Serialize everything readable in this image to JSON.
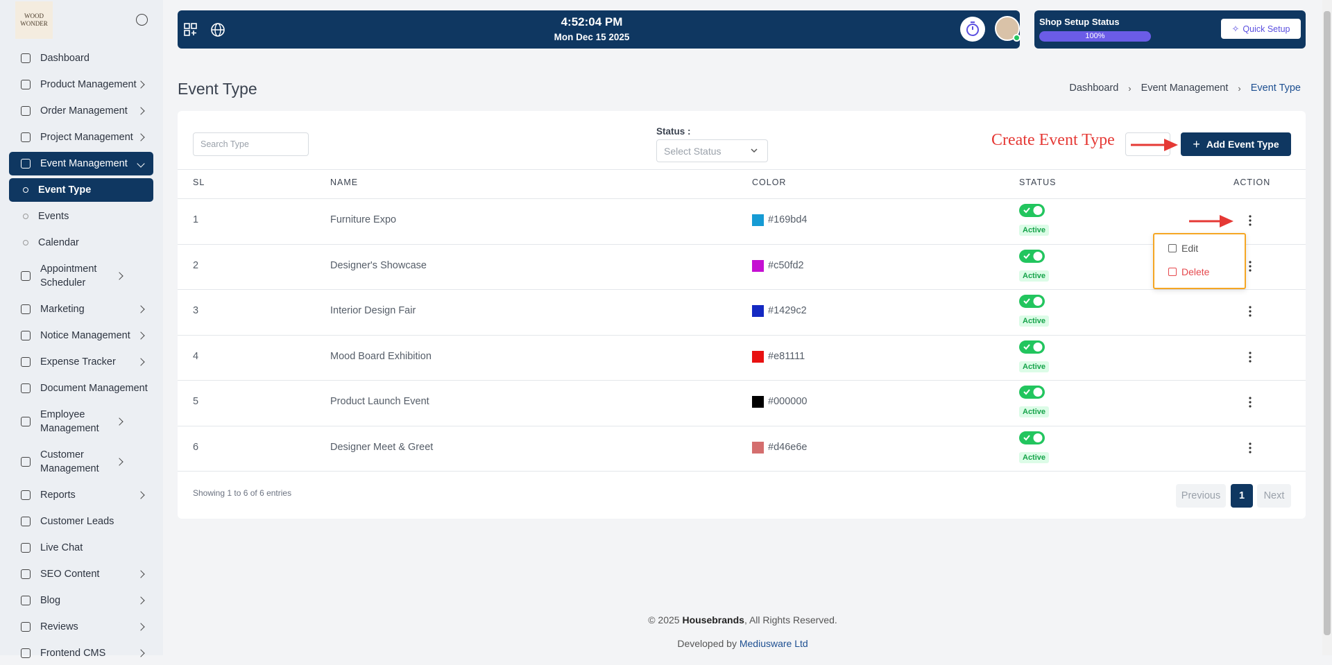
{
  "sidebar": {
    "logo": "WOOD WONDER",
    "menu": [
      {
        "label": "Dashboard",
        "submenu": false
      },
      {
        "label": "Product Management",
        "submenu": true
      },
      {
        "label": "Order Management",
        "submenu": true
      },
      {
        "label": "Project Management",
        "submenu": true
      },
      {
        "label": "Event Management",
        "submenu": true,
        "active": true,
        "children": [
          {
            "label": "Event Type",
            "active": true
          },
          {
            "label": "Events"
          },
          {
            "label": "Calendar"
          }
        ]
      },
      {
        "label": "Appointment Scheduler",
        "submenu": true
      },
      {
        "label": "Marketing",
        "submenu": true
      },
      {
        "label": "Notice Management",
        "submenu": true
      },
      {
        "label": "Expense Tracker",
        "submenu": true
      },
      {
        "label": "Document Management",
        "submenu": false
      },
      {
        "label": "Employee Management",
        "submenu": true
      },
      {
        "label": "Customer Management",
        "submenu": true
      },
      {
        "label": "Reports",
        "submenu": true
      },
      {
        "label": "Customer Leads",
        "submenu": false
      },
      {
        "label": "Live Chat",
        "submenu": false
      },
      {
        "label": "SEO Content",
        "submenu": true
      },
      {
        "label": "Blog",
        "submenu": true
      },
      {
        "label": "Reviews",
        "submenu": true
      },
      {
        "label": "Frontend CMS",
        "submenu": true
      }
    ]
  },
  "topbar": {
    "time": "4:52:04 PM",
    "date": "Mon Dec 15 2025",
    "shop_setup": {
      "title": "Shop Setup Status",
      "progress": {
        "value": 100,
        "label": "100%"
      },
      "button": "Quick Setup"
    }
  },
  "header": {
    "title": "Event Type",
    "breadcrumb": [
      "Dashboard",
      "Event Management",
      "Event Type"
    ]
  },
  "toolbar": {
    "search_placeholder": "Search Type",
    "status_label": "Status :",
    "status_placeholder": "Select Status",
    "annotation": "Create Event Type",
    "add_button": "Add Event Type"
  },
  "table": {
    "columns": [
      "SL",
      "NAME",
      "COLOR",
      "STATUS",
      "ACTION"
    ],
    "rows": [
      {
        "sl": "1",
        "name": "Furniture Expo",
        "color": "#169bd4",
        "status": "Active"
      },
      {
        "sl": "2",
        "name": "Designer's Showcase",
        "color": "#c50fd2",
        "status": "Active"
      },
      {
        "sl": "3",
        "name": "Interior Design Fair",
        "color": "#1429c2",
        "status": "Active"
      },
      {
        "sl": "4",
        "name": "Mood Board Exhibition",
        "color": "#e81111",
        "status": "Active"
      },
      {
        "sl": "5",
        "name": "Product Launch Event",
        "color": "#000000",
        "status": "Active"
      },
      {
        "sl": "6",
        "name": "Designer Meet & Greet",
        "color": "#d46e6e",
        "status": "Active"
      }
    ],
    "dropdown": [
      "Edit",
      "Delete"
    ],
    "info": "Showing 1 to 6 of 6 entries",
    "pagination": [
      "Previous",
      "1",
      "Next"
    ]
  },
  "footer": {
    "copyright": [
      "© 2025 ",
      "Housebrands",
      ", All Rights Reserved."
    ],
    "developed": [
      "Developed by ",
      "Mediusware Ltd"
    ]
  }
}
